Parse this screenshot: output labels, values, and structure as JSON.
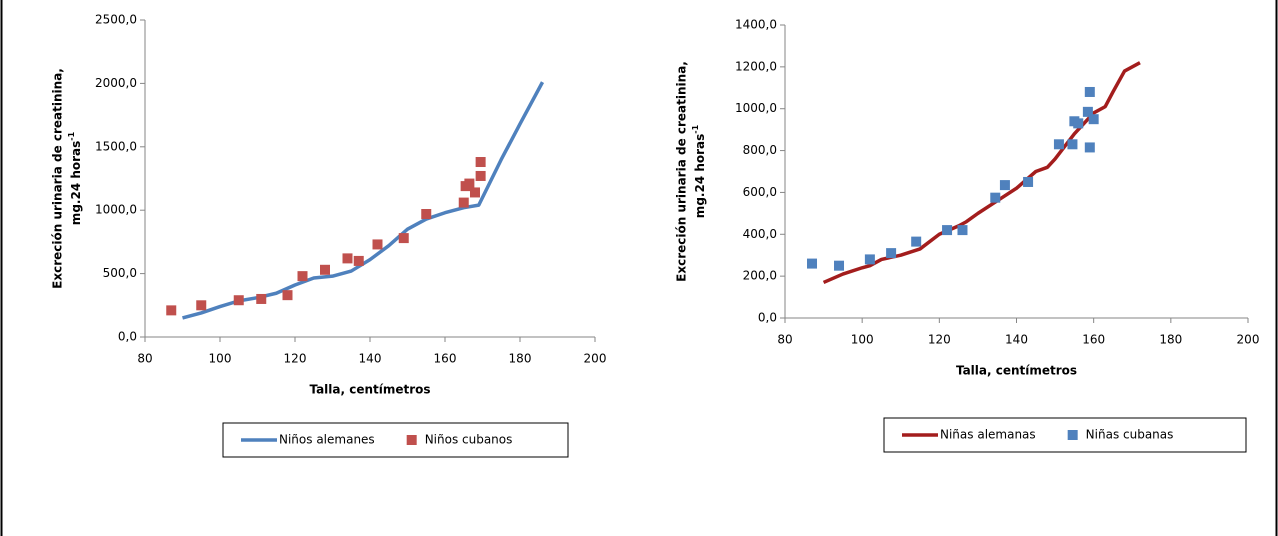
{
  "chart_data": [
    {
      "type": "scatter",
      "ylabel": [
        "Excreción  urinaria de creatinina,",
        "mg.24 horas"
      ],
      "ylabel_sup": "-1",
      "xlabel": "Talla,  centímetros",
      "xlim": [
        80,
        200
      ],
      "xticks": [
        80,
        100,
        120,
        140,
        160,
        180,
        200
      ],
      "ylim": [
        0,
        2500
      ],
      "yticks": [
        {
          "value": 0,
          "label": "0,0"
        },
        {
          "value": 500,
          "label": "500,0"
        },
        {
          "value": 1000,
          "label": "1000,0"
        },
        {
          "value": 1500,
          "label": "1500,0"
        },
        {
          "value": 2000,
          "label": "2000,0"
        },
        {
          "value": 2500,
          "label": "2500,0"
        }
      ],
      "series": [
        {
          "name": "Niños alemanes",
          "type": "line",
          "color": "#4f81bd",
          "x": [
            90,
            95,
            100,
            105,
            110,
            115,
            120,
            125,
            130,
            135,
            140,
            145,
            150,
            155,
            160,
            165,
            169,
            175,
            180,
            186
          ],
          "values": [
            150,
            190,
            240,
            285,
            310,
            345,
            410,
            465,
            480,
            520,
            610,
            720,
            850,
            930,
            980,
            1020,
            1040,
            1400,
            1680,
            2010
          ]
        },
        {
          "name": "Niños cubanos",
          "type": "scatter",
          "color": "#c0504d",
          "x": [
            87,
            95,
            105,
            111,
            118,
            122,
            128,
            134,
            137,
            142,
            149,
            155,
            165,
            165.5,
            166.5,
            168,
            169.5,
            169.5
          ],
          "values": [
            210,
            250,
            290,
            300,
            330,
            480,
            530,
            620,
            600,
            730,
            780,
            970,
            1060,
            1190,
            1210,
            1140,
            1270,
            1380
          ]
        }
      ]
    },
    {
      "type": "scatter",
      "ylabel": [
        "Excreción  urinaria de creatinina,",
        "mg.24 horas"
      ],
      "ylabel_sup": "-1",
      "xlabel": "Talla,  centímetros",
      "xlim": [
        80,
        200
      ],
      "xticks": [
        80,
        100,
        120,
        140,
        160,
        180,
        200
      ],
      "ylim": [
        0,
        1400
      ],
      "yticks": [
        {
          "value": 0,
          "label": "0,0"
        },
        {
          "value": 200,
          "label": "200,0"
        },
        {
          "value": 400,
          "label": "400,0"
        },
        {
          "value": 600,
          "label": "600,0"
        },
        {
          "value": 800,
          "label": "800,0"
        },
        {
          "value": 1000,
          "label": "1000,0"
        },
        {
          "value": 1200,
          "label": "1200,0"
        },
        {
          "value": 1400,
          "label": "1400,0"
        }
      ],
      "series": [
        {
          "name": "Niñas alemanas",
          "type": "line",
          "color": "#a31d1d",
          "x": [
            90,
            95,
            100,
            102,
            105,
            110,
            115,
            120,
            125,
            127,
            130,
            135,
            140,
            145,
            148,
            150,
            155,
            160,
            163,
            165,
            168,
            172
          ],
          "values": [
            170,
            210,
            240,
            250,
            280,
            300,
            330,
            400,
            440,
            460,
            500,
            560,
            620,
            700,
            720,
            760,
            880,
            980,
            1010,
            1080,
            1180,
            1220
          ]
        },
        {
          "name": "Niñas cubanas",
          "type": "scatter",
          "color": "#4f81bd",
          "x": [
            87,
            94,
            102,
            107.5,
            114,
            122,
            126,
            134.5,
            137,
            143,
            151,
            154.5,
            155,
            156,
            158.5,
            159,
            159,
            160
          ],
          "values": [
            260,
            250,
            280,
            310,
            365,
            420,
            420,
            575,
            635,
            650,
            830,
            830,
            940,
            930,
            985,
            1080,
            815,
            950
          ]
        }
      ]
    }
  ]
}
